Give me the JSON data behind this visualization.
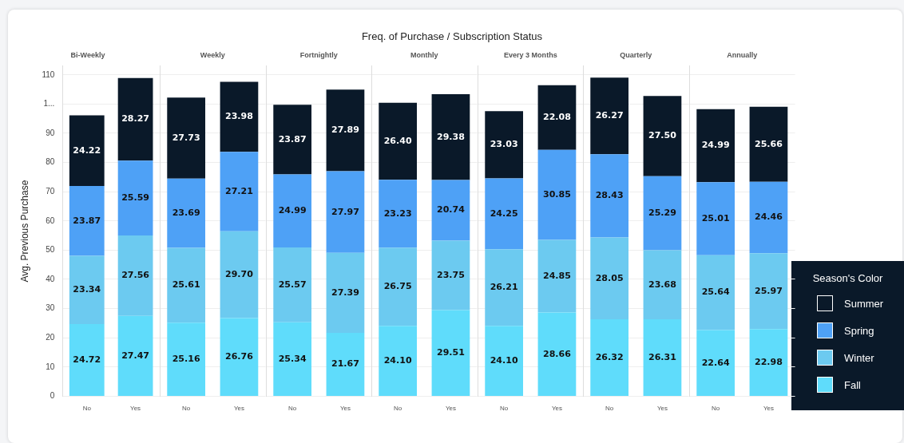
{
  "chart_data": [
    {
      "type": "other",
      "title": "Freq. of Purchase / Subscription Status"
    },
    {
      "type": "bar",
      "title": "Bi-Weekly",
      "ylabel": "Avg. Previous Purchase",
      "categories": [
        "No",
        "Yes"
      ],
      "stacked": true,
      "ylim": [
        0,
        113
      ],
      "yticks": [
        0,
        10,
        20,
        30,
        40,
        50,
        60,
        70,
        80,
        90,
        {
          "value": 100,
          "label": "1..."
        },
        110
      ],
      "grid": "y",
      "legend": false,
      "series": [
        {
          "color": "#5fdcfb",
          "values": [
            24.72,
            27.47
          ],
          "value_labels": [
            "24.72",
            "27.47"
          ]
        },
        {
          "color": "#6ccaf0",
          "values": [
            23.34,
            27.56
          ],
          "value_labels": [
            "23.34",
            "27.56"
          ]
        },
        {
          "color": "#4ea1f6",
          "values": [
            23.87,
            25.59
          ],
          "value_labels": [
            "23.87",
            "25.59"
          ]
        },
        {
          "color": "#0a1929",
          "values": [
            24.22,
            28.27
          ],
          "value_labels": [
            "24.22",
            "28.27"
          ]
        }
      ]
    },
    {
      "type": "bar",
      "title": "Weekly",
      "categories": [
        "No",
        "Yes"
      ],
      "stacked": true,
      "ylim": [
        0,
        113
      ],
      "yticks": [
        0,
        10,
        20,
        30,
        40,
        50,
        60,
        70,
        80,
        90,
        100,
        110
      ],
      "tick_labels": "x",
      "grid": "y",
      "legend": false,
      "series": [
        {
          "color": "#5fdcfb",
          "values": [
            25.16,
            26.76
          ],
          "value_labels": [
            "25.16",
            "26.76"
          ]
        },
        {
          "color": "#6ccaf0",
          "values": [
            25.61,
            29.7
          ],
          "value_labels": [
            "25.61",
            "29.70"
          ]
        },
        {
          "color": "#4ea1f6",
          "values": [
            23.69,
            27.21
          ],
          "value_labels": [
            "23.69",
            "27.21"
          ]
        },
        {
          "color": "#0a1929",
          "values": [
            27.73,
            23.98
          ],
          "value_labels": [
            "27.73",
            "23.98"
          ]
        }
      ]
    },
    {
      "type": "bar",
      "title": "Fortnightly",
      "categories": [
        "No",
        "Yes"
      ],
      "stacked": true,
      "ylim": [
        0,
        113
      ],
      "yticks": [
        0,
        10,
        20,
        30,
        40,
        50,
        60,
        70,
        80,
        90,
        100,
        110
      ],
      "tick_labels": "x",
      "grid": "y",
      "legend": false,
      "series": [
        {
          "color": "#5fdcfb",
          "values": [
            25.34,
            21.67
          ],
          "value_labels": [
            "25.34",
            "21.67"
          ]
        },
        {
          "color": "#6ccaf0",
          "values": [
            25.57,
            27.39
          ],
          "value_labels": [
            "25.57",
            "27.39"
          ]
        },
        {
          "color": "#4ea1f6",
          "values": [
            24.99,
            27.97
          ],
          "value_labels": [
            "24.99",
            "27.97"
          ]
        },
        {
          "color": "#0a1929",
          "values": [
            23.87,
            27.89
          ],
          "value_labels": [
            "23.87",
            "27.89"
          ]
        }
      ]
    },
    {
      "type": "bar",
      "title": "Monthly",
      "categories": [
        "No",
        "Yes"
      ],
      "stacked": true,
      "ylim": [
        0,
        113
      ],
      "yticks": [
        0,
        10,
        20,
        30,
        40,
        50,
        60,
        70,
        80,
        90,
        100,
        110
      ],
      "tick_labels": "x",
      "grid": "y",
      "legend": false,
      "series": [
        {
          "color": "#5fdcfb",
          "values": [
            24.1,
            29.51
          ],
          "value_labels": [
            "24.10",
            "29.51"
          ]
        },
        {
          "color": "#6ccaf0",
          "values": [
            26.75,
            23.75
          ],
          "value_labels": [
            "26.75",
            "23.75"
          ]
        },
        {
          "color": "#4ea1f6",
          "values": [
            23.23,
            20.74
          ],
          "value_labels": [
            "23.23",
            "20.74"
          ]
        },
        {
          "color": "#0a1929",
          "values": [
            26.4,
            29.38
          ],
          "value_labels": [
            "26.40",
            "29.38"
          ]
        }
      ]
    },
    {
      "type": "bar",
      "title": "Every 3 Months",
      "categories": [
        "No",
        "Yes"
      ],
      "stacked": true,
      "ylim": [
        0,
        113
      ],
      "yticks": [
        0,
        10,
        20,
        30,
        40,
        50,
        60,
        70,
        80,
        90,
        100,
        110
      ],
      "tick_labels": "x",
      "grid": "y",
      "legend": false,
      "series": [
        {
          "color": "#5fdcfb",
          "values": [
            24.1,
            28.66
          ],
          "value_labels": [
            "24.10",
            "28.66"
          ]
        },
        {
          "color": "#6ccaf0",
          "values": [
            26.21,
            24.85
          ],
          "value_labels": [
            "26.21",
            "24.85"
          ]
        },
        {
          "color": "#4ea1f6",
          "values": [
            24.25,
            30.85
          ],
          "value_labels": [
            "24.25",
            "30.85"
          ]
        },
        {
          "color": "#0a1929",
          "values": [
            23.03,
            22.08
          ],
          "value_labels": [
            "23.03",
            "22.08"
          ]
        }
      ]
    },
    {
      "type": "bar",
      "title": "Quarterly",
      "categories": [
        "No",
        "Yes"
      ],
      "stacked": true,
      "ylim": [
        0,
        113
      ],
      "yticks": [
        0,
        10,
        20,
        30,
        40,
        50,
        60,
        70,
        80,
        90,
        100,
        110
      ],
      "tick_labels": "x",
      "grid": "y",
      "legend": false,
      "series": [
        {
          "color": "#5fdcfb",
          "values": [
            26.32,
            26.31
          ],
          "value_labels": [
            "26.32",
            "26.31"
          ]
        },
        {
          "color": "#6ccaf0",
          "values": [
            28.05,
            23.68
          ],
          "value_labels": [
            "28.05",
            "23.68"
          ]
        },
        {
          "color": "#4ea1f6",
          "values": [
            28.43,
            25.29
          ],
          "value_labels": [
            "28.43",
            "25.29"
          ]
        },
        {
          "color": "#0a1929",
          "values": [
            26.27,
            27.5
          ],
          "value_labels": [
            "26.27",
            "27.50"
          ]
        }
      ]
    },
    {
      "type": "bar",
      "title": "Annually",
      "categories": [
        "No",
        "Yes"
      ],
      "stacked": true,
      "ylim": [
        0,
        113
      ],
      "yticks": [
        0,
        10,
        20,
        30,
        40,
        50,
        60,
        70,
        80,
        90,
        100,
        110
      ],
      "tick_labels": "x",
      "grid": "y",
      "legend": "right",
      "legend_title": "Season's Color",
      "series": [
        {
          "name": "Fall",
          "color": "#5fdcfb",
          "values": [
            22.64,
            22.98
          ],
          "value_labels": [
            "22.64",
            "22.98"
          ]
        },
        {
          "name": "Winter",
          "color": "#6ccaf0",
          "values": [
            25.64,
            25.97
          ],
          "value_labels": [
            "25.64",
            "25.97"
          ]
        },
        {
          "name": "Spring",
          "color": "#4ea1f6",
          "values": [
            25.01,
            24.46
          ],
          "value_labels": [
            "25.01",
            "24.46"
          ]
        },
        {
          "name": "Summer",
          "color": "#0a1929",
          "values": [
            24.99,
            25.66
          ],
          "value_labels": [
            "24.99",
            "25.66"
          ]
        }
      ]
    }
  ]
}
